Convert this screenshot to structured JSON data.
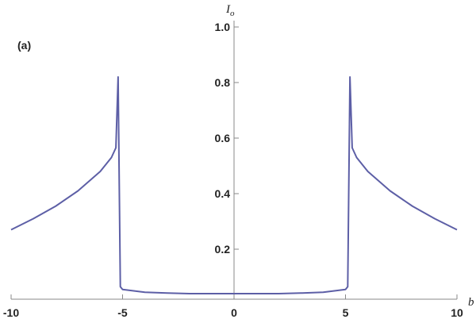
{
  "chart_data": {
    "type": "line",
    "panel_label": "(a)",
    "y_label": "I",
    "y_label_sub": "o",
    "x_label": "b",
    "x": [
      -10,
      -9,
      -8,
      -7,
      -6,
      -5.5,
      -5.3,
      -5.2,
      -5.1,
      -5,
      -4,
      -3,
      -2,
      -1,
      0,
      1,
      2,
      3,
      4,
      5,
      5.1,
      5.2,
      5.3,
      5.5,
      6,
      7,
      8,
      9,
      10
    ],
    "series": [
      {
        "name": "I_o",
        "color": "#5d5fa6",
        "values": [
          0.27,
          0.31,
          0.355,
          0.41,
          0.48,
          0.53,
          0.565,
          0.82,
          0.065,
          0.055,
          0.045,
          0.042,
          0.04,
          0.04,
          0.04,
          0.04,
          0.04,
          0.042,
          0.045,
          0.055,
          0.065,
          0.82,
          0.565,
          0.53,
          0.48,
          0.41,
          0.355,
          0.31,
          0.27
        ]
      }
    ],
    "xlim": [
      -10,
      10
    ],
    "ylim": [
      0.02,
      1.0
    ],
    "xticks": [
      -10,
      -5,
      0,
      5,
      10
    ],
    "yticks": [
      0.2,
      0.4,
      0.6,
      0.8,
      {
        "value": 1.0,
        "label": "1.0"
      }
    ]
  }
}
